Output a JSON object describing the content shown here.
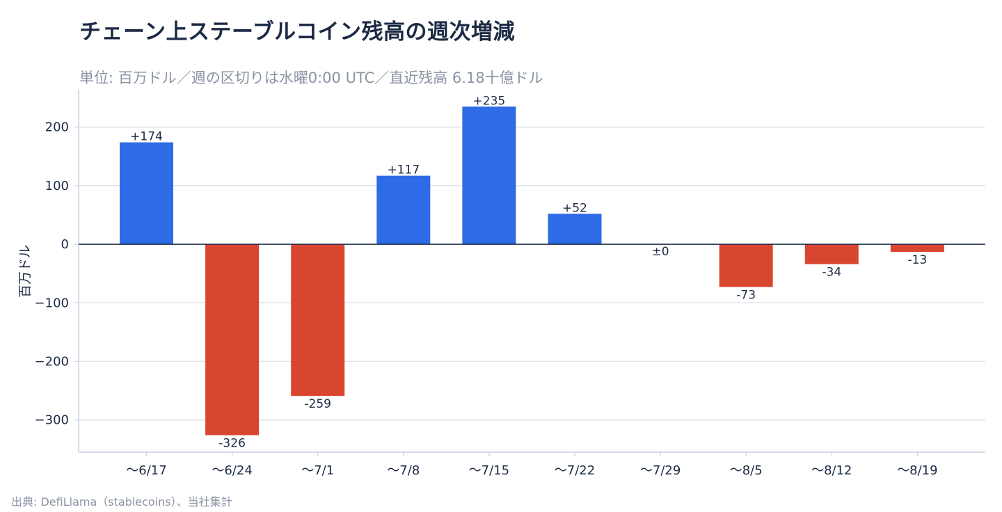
{
  "header": {
    "title": "チェーン上ステーブルコイン残高の週次増減",
    "subtitle": "単位: 百万ドル／週の区切りは水曜0:00 UTC／直近残高 6.18十億ドル"
  },
  "footer": {
    "source": "出典: DefiLlama（stablecoins）、当社集計"
  },
  "colors": {
    "positive": "#2e6be6",
    "negative": "#d9462f",
    "zero_line": "#1c2a44",
    "grid": "#dde3ec",
    "axis": "#c9d1de",
    "text": "#1c2a44"
  },
  "chart_data": {
    "type": "bar",
    "ylabel": "百万ドル",
    "ylim": [
      -355,
      265
    ],
    "yticks": [
      200,
      100,
      0,
      -100,
      -200,
      -300
    ],
    "ytick_labels": [
      "200",
      "100",
      "0",
      "−100",
      "−200",
      "−300"
    ],
    "categories": [
      "〜6/17",
      "〜6/24",
      "〜7/1",
      "〜7/8",
      "〜7/15",
      "〜7/22",
      "〜7/29",
      "〜8/5",
      "〜8/12",
      "〜8/19"
    ],
    "values": [
      174,
      -326,
      -259,
      117,
      235,
      52,
      0,
      -73,
      -34,
      -13
    ],
    "data_labels": [
      "+174",
      "-326",
      "-259",
      "+117",
      "+235",
      "+52",
      "±0",
      "-73",
      "-34",
      "-13"
    ],
    "grid": true,
    "legend": "none"
  }
}
